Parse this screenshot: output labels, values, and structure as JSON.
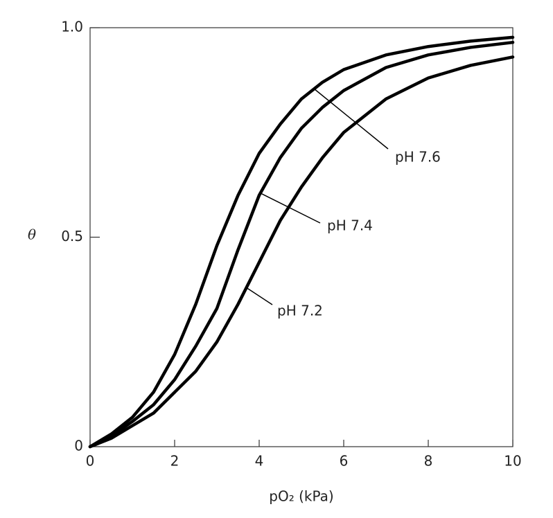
{
  "chart_data": {
    "type": "line",
    "x_label": "pO₂ (kPa)",
    "y_label": "θ",
    "x": [
      0,
      0.5,
      1,
      1.5,
      2,
      2.5,
      3,
      3.5,
      4,
      4.5,
      5,
      5.5,
      6,
      7,
      8,
      9,
      10
    ],
    "series": [
      {
        "name": "pH 7.6",
        "color": "#000000",
        "values": [
          0,
          0.03,
          0.07,
          0.13,
          0.22,
          0.34,
          0.48,
          0.6,
          0.7,
          0.77,
          0.83,
          0.87,
          0.9,
          0.935,
          0.955,
          0.968,
          0.977
        ]
      },
      {
        "name": "pH 7.4",
        "color": "#000000",
        "values": [
          0,
          0.025,
          0.06,
          0.1,
          0.16,
          0.24,
          0.33,
          0.47,
          0.6,
          0.69,
          0.76,
          0.81,
          0.85,
          0.905,
          0.935,
          0.953,
          0.965
        ]
      },
      {
        "name": "pH 7.2",
        "color": "#000000",
        "values": [
          0,
          0.02,
          0.05,
          0.08,
          0.13,
          0.18,
          0.25,
          0.34,
          0.44,
          0.54,
          0.62,
          0.69,
          0.75,
          0.83,
          0.88,
          0.91,
          0.93
        ]
      }
    ],
    "xlim": [
      0,
      10
    ],
    "xticks": [
      0,
      2,
      4,
      6,
      8,
      10
    ],
    "ylim": [
      0,
      1
    ],
    "yticks": [
      0,
      0.5,
      {
        "value": 1,
        "label": "1.0"
      }
    ],
    "grid": false
  }
}
